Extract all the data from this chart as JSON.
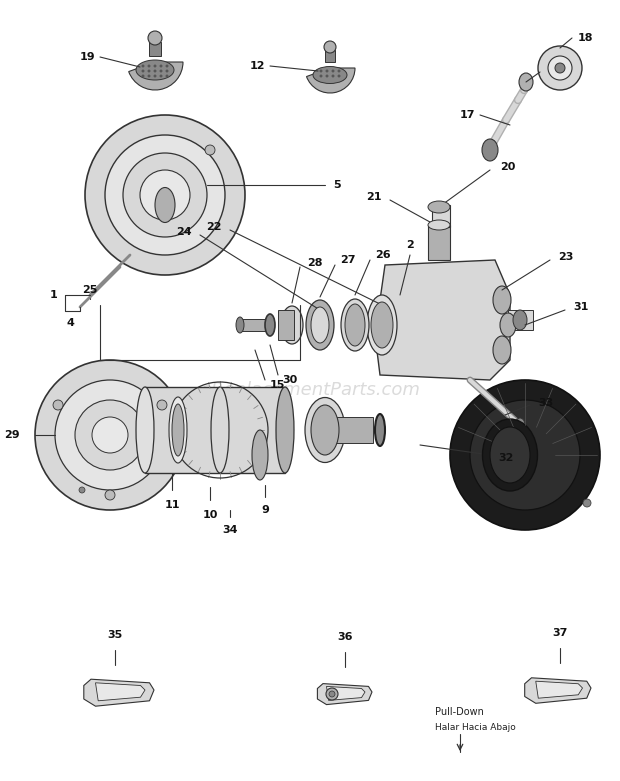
{
  "bg_color": "#ffffff",
  "watermark": "eReplacementParts.com",
  "watermark_color": "#cccccc",
  "line_color": "#333333",
  "label_color": "#111111",
  "part_color_light": "#d8d8d8",
  "part_color_mid": "#b0b0b0",
  "part_color_dark": "#888888",
  "part_color_black": "#1a1a1a",
  "figw": 6.2,
  "figh": 7.81,
  "dpi": 100
}
